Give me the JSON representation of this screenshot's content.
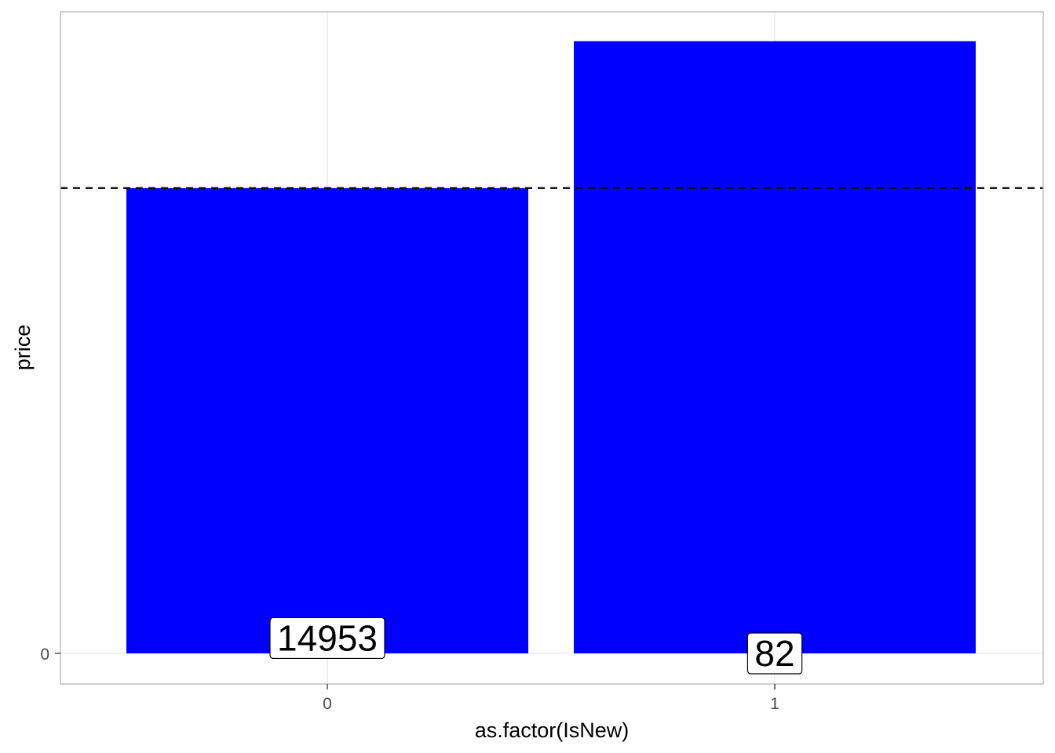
{
  "chart_data": {
    "type": "bar",
    "title": "",
    "xlabel": "as.factor(IsNew)",
    "ylabel": "price",
    "categories": [
      "0",
      "1"
    ],
    "values": [
      0.76,
      1.0
    ],
    "y_ticks": [
      {
        "value": 0,
        "label": "0"
      }
    ],
    "ylim": [
      -0.05,
      1.048
    ],
    "reference_line": {
      "value": 0.76,
      "style": "dashed",
      "color": "#000000"
    },
    "data_labels": [
      {
        "category": "0",
        "text": "14953",
        "y": 0.025
      },
      {
        "category": "1",
        "text": "82",
        "y": 0.0
      }
    ],
    "bar_color": "#0000ff",
    "grid": true,
    "legend": "none"
  }
}
